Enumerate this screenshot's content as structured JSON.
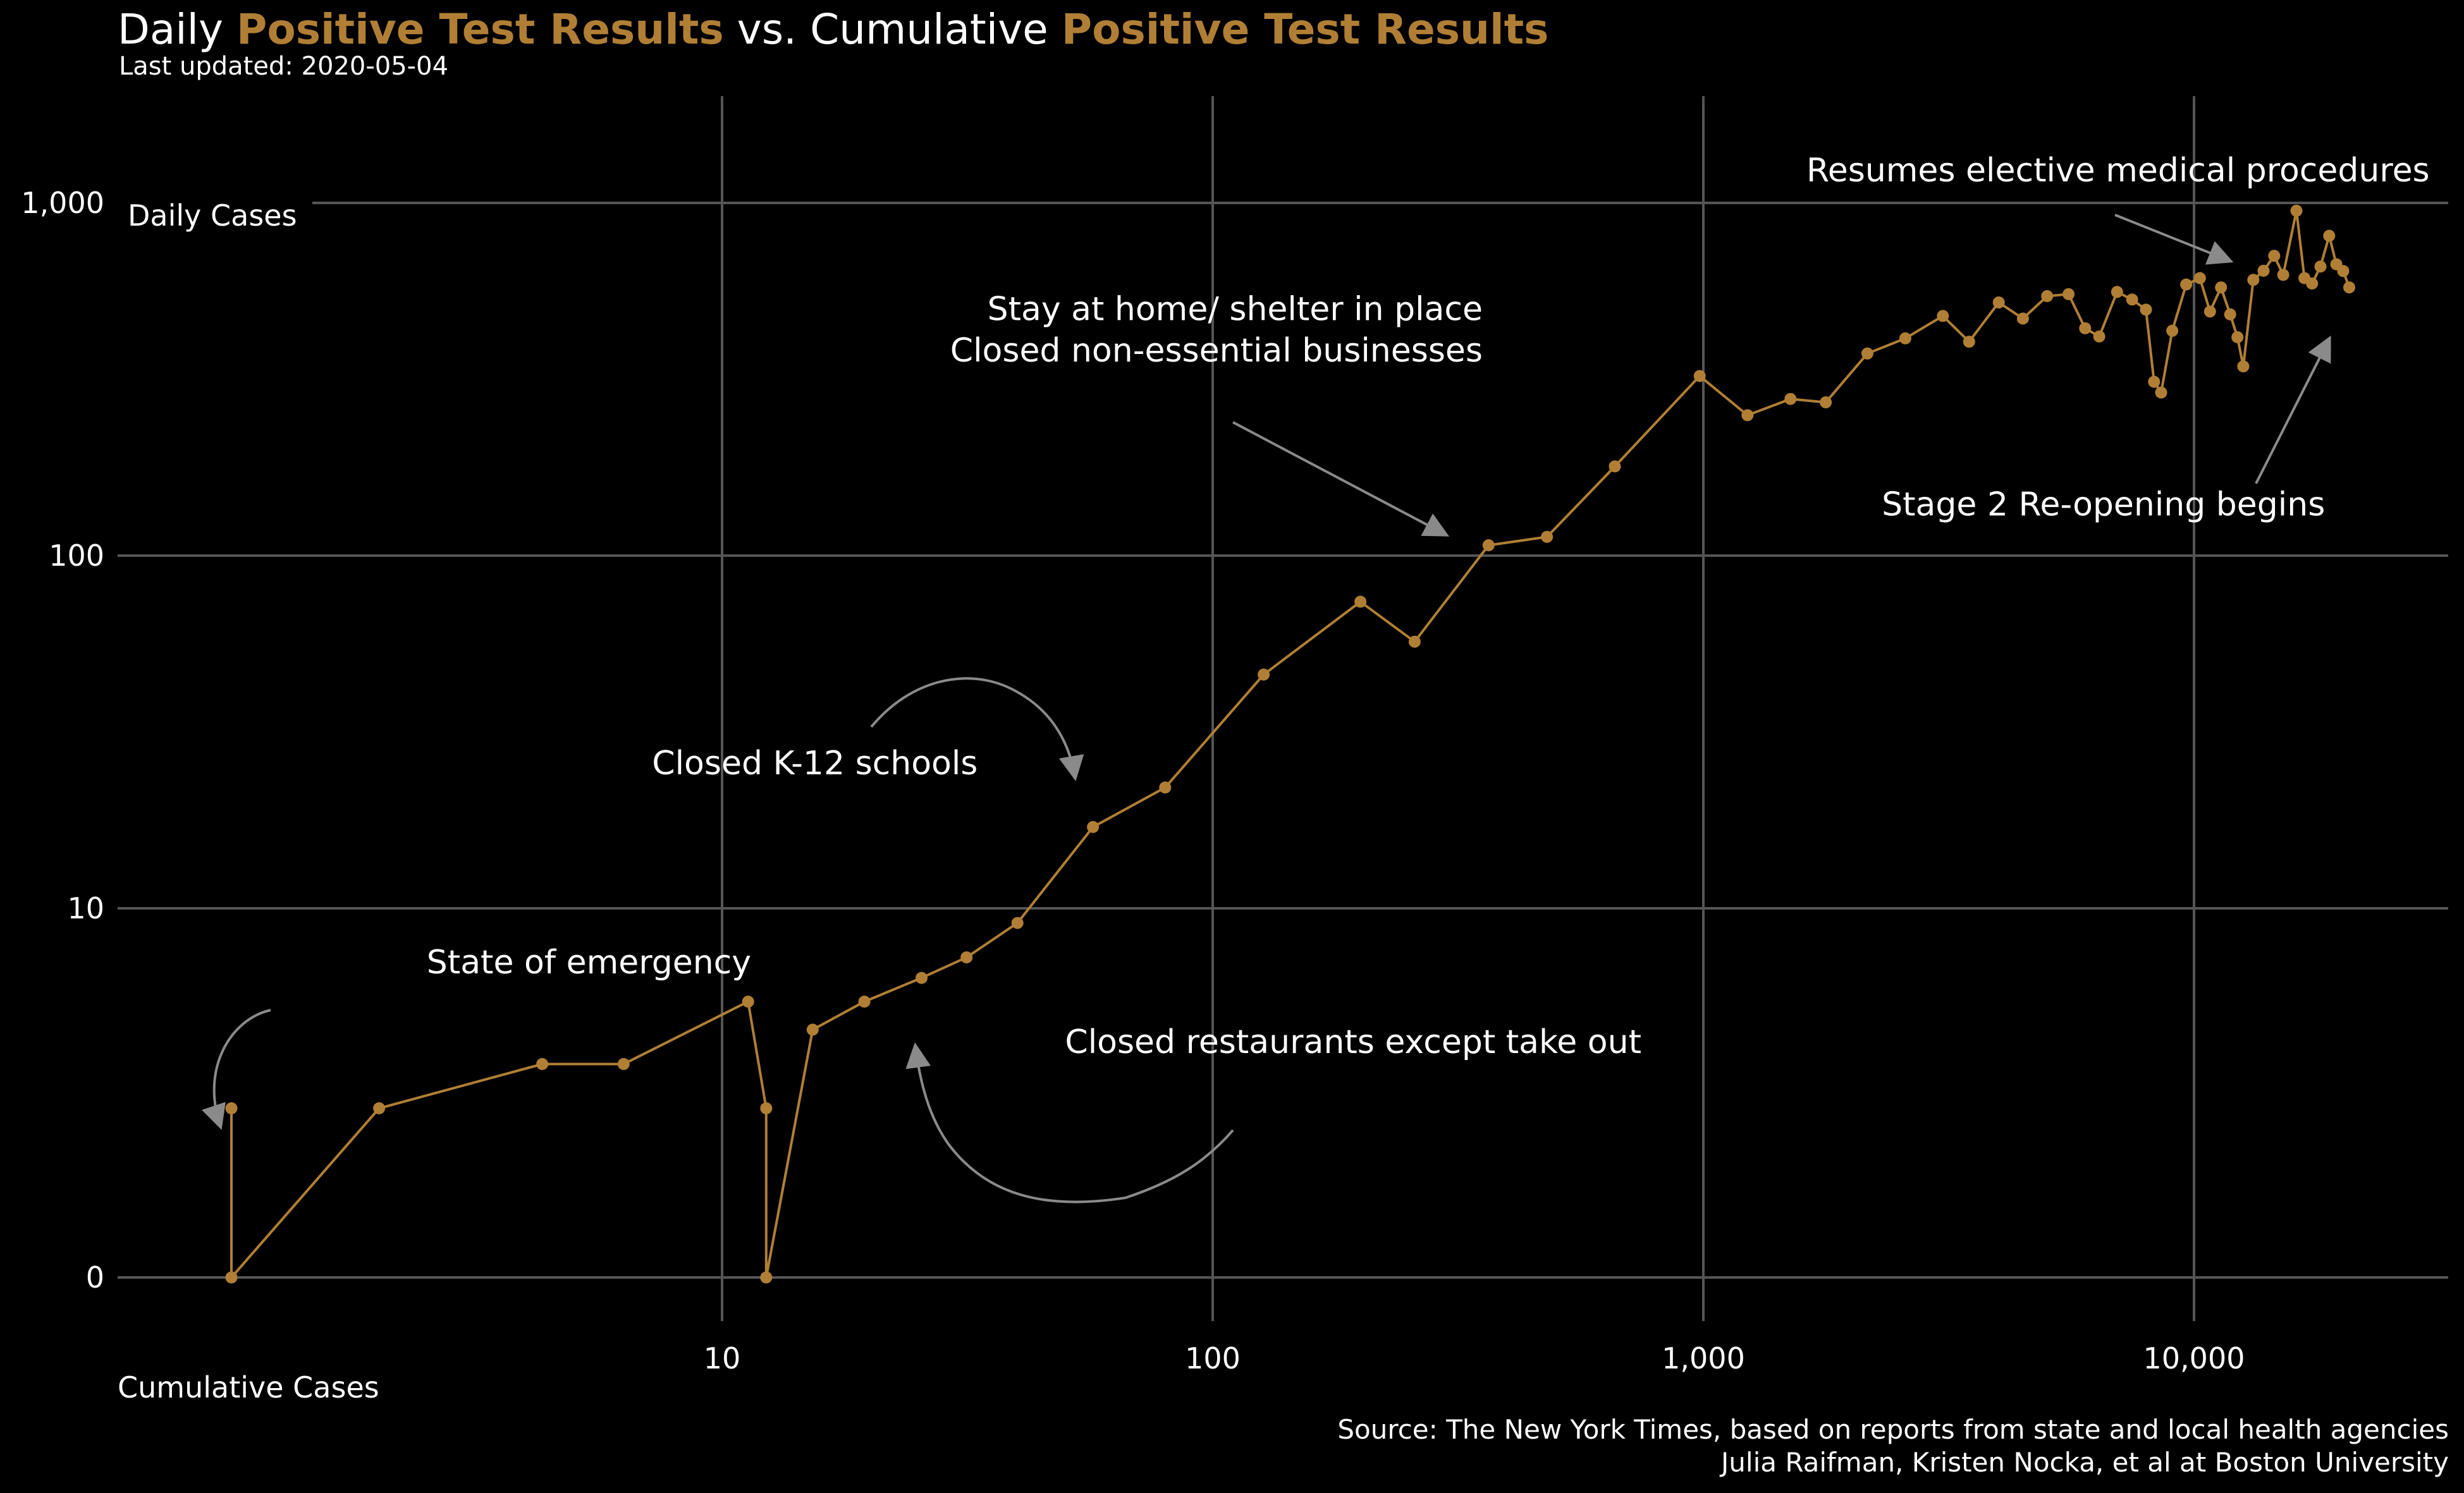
{
  "title": {
    "part1": "Daily ",
    "part2": "Positive Test Results",
    "part3": " vs. Cumulative ",
    "part4": "Positive Test Results"
  },
  "subtitle": "Last updated: 2020-05-04",
  "caption": {
    "line1": "Source: The New York Times, based on reports from state and local health agencies",
    "line2": "Julia Raifman,  Kristen Nocka, et al at Boston University"
  },
  "colors": {
    "background": "#000000",
    "series": "#b07f35",
    "grid": "#555555",
    "arrow": "#8a8a8a",
    "text": "#ffffff"
  },
  "chart_data": {
    "type": "line",
    "title": "Daily Positive Test Results vs. Cumulative Positive Test Results",
    "xlabel": "Cumulative Cases",
    "ylabel": "Daily Cases",
    "x_scale": "log",
    "y_scale": "pseudo-log",
    "grid": true,
    "xlim": [
      0.5,
      36000
    ],
    "ylim": [
      0,
      1700
    ],
    "x_ticks": [
      10,
      100,
      1000,
      10000
    ],
    "x_tick_labels": [
      "10",
      "100",
      "1,000",
      "10,000"
    ],
    "y_ticks": [
      0,
      10,
      100,
      1000
    ],
    "y_tick_labels": [
      "0",
      "10",
      "100",
      "1,000"
    ],
    "series": [
      {
        "points": [
          [
            1,
            2
          ],
          [
            1,
            0
          ],
          [
            2,
            2
          ],
          [
            4.3,
            3
          ],
          [
            6.3,
            3
          ],
          [
            11.3,
            5
          ],
          [
            12.3,
            2
          ],
          [
            12.3,
            0
          ],
          [
            15.3,
            4
          ],
          [
            19.5,
            5
          ],
          [
            25.5,
            6
          ],
          [
            31.5,
            7
          ],
          [
            40,
            9
          ],
          [
            57,
            17
          ],
          [
            80,
            22
          ],
          [
            127,
            46
          ],
          [
            200,
            74
          ],
          [
            258,
            57
          ],
          [
            365,
            107
          ],
          [
            480,
            113
          ],
          [
            660,
            179
          ],
          [
            983,
            323
          ],
          [
            1230,
            250
          ],
          [
            1505,
            278
          ],
          [
            1776,
            272
          ],
          [
            2159,
            374
          ],
          [
            2580,
            413
          ],
          [
            3077,
            478
          ],
          [
            3480,
            404
          ],
          [
            4000,
            522
          ],
          [
            4480,
            470
          ],
          [
            5020,
            544
          ],
          [
            5550,
            551
          ],
          [
            6000,
            441
          ],
          [
            6410,
            418
          ],
          [
            6970,
            559
          ],
          [
            7480,
            532
          ],
          [
            7980,
            498
          ],
          [
            8290,
            311
          ],
          [
            8570,
            290
          ],
          [
            9030,
            434
          ],
          [
            9640,
            587
          ],
          [
            10280,
            612
          ],
          [
            10780,
            492
          ],
          [
            11350,
            576
          ],
          [
            11850,
            483
          ],
          [
            12260,
            416
          ],
          [
            12600,
            344
          ],
          [
            13210,
            605
          ],
          [
            13860,
            642
          ],
          [
            14570,
            708
          ],
          [
            15200,
            625
          ],
          [
            16170,
            950
          ],
          [
            16790,
            612
          ],
          [
            17400,
            591
          ],
          [
            18100,
            660
          ],
          [
            18860,
            807
          ],
          [
            19500,
            670
          ],
          [
            20140,
            641
          ],
          [
            20720,
            576
          ]
        ]
      }
    ],
    "annotations": [
      {
        "text": "State of emergency",
        "x": 2.5,
        "y": 6.2
      },
      {
        "text": "Closed K-12 schools",
        "x": 7.2,
        "y": 24
      },
      {
        "text": "Closed restaurants except take out",
        "x": 50,
        "y": 3.3
      },
      {
        "text": "Stay at home/ shelter in place",
        "x": 355,
        "y": 465
      },
      {
        "text": "Closed non-essential businesses",
        "x": 355,
        "y": 355
      },
      {
        "text": "Resumes elective medical procedures",
        "x": 7000,
        "y": 1150
      },
      {
        "text": "Stage 2 Re-opening begins",
        "x": 18500,
        "y": 130
      }
    ]
  }
}
